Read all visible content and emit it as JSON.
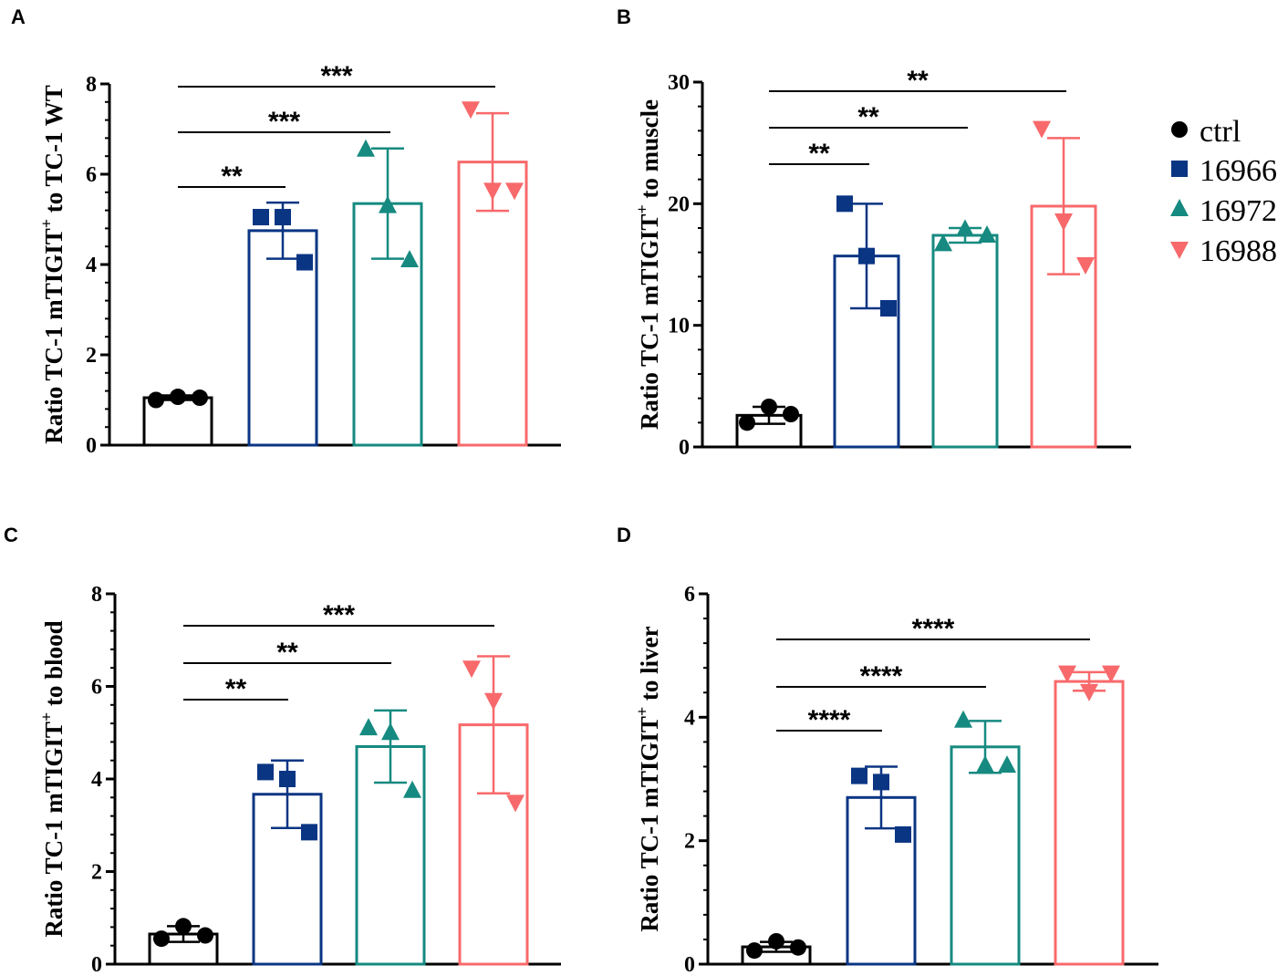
{
  "legend": [
    {
      "name": "ctrl",
      "color": "#000000",
      "marker": "circle"
    },
    {
      "name": "16966",
      "color": "#0a3583",
      "marker": "square"
    },
    {
      "name": "16972",
      "color": "#168a80",
      "marker": "triangle-up"
    },
    {
      "name": "16988",
      "color": "#f8696b",
      "marker": "triangle-down"
    }
  ],
  "chart_data": [
    {
      "panel": "A",
      "type": "bar",
      "ylabel_parts": [
        "Ratio TC-1 mTIGIT",
        "+",
        " to TC-1 WT"
      ],
      "ylim": [
        0,
        8
      ],
      "yticks": [
        0,
        2,
        4,
        6,
        8
      ],
      "categories": [
        "ctrl",
        "16966",
        "16972",
        "16988"
      ],
      "means": [
        1.05,
        4.75,
        5.35,
        6.27
      ],
      "errors": [
        0.05,
        0.62,
        1.22,
        1.08
      ],
      "points": [
        [
          1.0,
          1.07,
          1.05
        ],
        [
          5.05,
          5.05,
          4.05
        ],
        [
          6.55,
          5.3,
          4.1
        ],
        [
          7.45,
          5.65,
          5.65
        ]
      ],
      "significance": [
        {
          "from": 0,
          "to": 1,
          "label": "**"
        },
        {
          "from": 0,
          "to": 2,
          "label": "***"
        },
        {
          "from": 0,
          "to": 3,
          "label": "***"
        }
      ]
    },
    {
      "panel": "B",
      "type": "bar",
      "ylabel_parts": [
        "Ratio TC-1 mTIGIT",
        "+",
        " to muscle"
      ],
      "ylim": [
        0,
        30
      ],
      "yticks": [
        0,
        10,
        20,
        30
      ],
      "categories": [
        "ctrl",
        "16966",
        "16972",
        "16988"
      ],
      "means": [
        2.6,
        15.7,
        17.4,
        19.8
      ],
      "errors": [
        0.7,
        4.3,
        0.6,
        5.6
      ],
      "points": [
        [
          2.0,
          3.3,
          2.7
        ],
        [
          20.0,
          15.7,
          11.4
        ],
        [
          16.7,
          17.9,
          17.4
        ],
        [
          26.2,
          18.6,
          15.0
        ]
      ],
      "significance": [
        {
          "from": 0,
          "to": 1,
          "label": "**"
        },
        {
          "from": 0,
          "to": 2,
          "label": "**"
        },
        {
          "from": 0,
          "to": 3,
          "label": "**"
        }
      ]
    },
    {
      "panel": "C",
      "type": "bar",
      "ylabel_parts": [
        "Ratio TC-1 mTIGIT",
        "+",
        " to blood"
      ],
      "ylim": [
        0,
        8
      ],
      "yticks": [
        0,
        2,
        4,
        6,
        8
      ],
      "categories": [
        "ctrl",
        "16966",
        "16972",
        "16988"
      ],
      "means": [
        0.65,
        3.67,
        4.7,
        5.17
      ],
      "errors": [
        0.17,
        0.73,
        0.78,
        1.48
      ],
      "points": [
        [
          0.55,
          0.82,
          0.62
        ],
        [
          4.15,
          4.0,
          2.85
        ],
        [
          5.1,
          5.0,
          3.75
        ],
        [
          6.4,
          5.7,
          3.5
        ]
      ],
      "significance": [
        {
          "from": 0,
          "to": 1,
          "label": "**"
        },
        {
          "from": 0,
          "to": 2,
          "label": "**"
        },
        {
          "from": 0,
          "to": 3,
          "label": "***"
        }
      ]
    },
    {
      "panel": "D",
      "type": "bar",
      "ylabel_parts": [
        "Ratio TC-1 mTIGIT",
        "+",
        " to liver"
      ],
      "ylim": [
        0,
        6
      ],
      "yticks": [
        0,
        2,
        4,
        6
      ],
      "categories": [
        "ctrl",
        "16966",
        "16972",
        "16988"
      ],
      "means": [
        0.28,
        2.7,
        3.52,
        4.58
      ],
      "errors": [
        0.08,
        0.5,
        0.42,
        0.15
      ],
      "points": [
        [
          0.22,
          0.37,
          0.27
        ],
        [
          3.05,
          2.95,
          2.1
        ],
        [
          3.95,
          3.22,
          3.22
        ],
        [
          4.72,
          4.42,
          4.72
        ]
      ],
      "significance": [
        {
          "from": 0,
          "to": 1,
          "label": "****"
        },
        {
          "from": 0,
          "to": 2,
          "label": "****"
        },
        {
          "from": 0,
          "to": 3,
          "label": "****"
        }
      ]
    }
  ]
}
